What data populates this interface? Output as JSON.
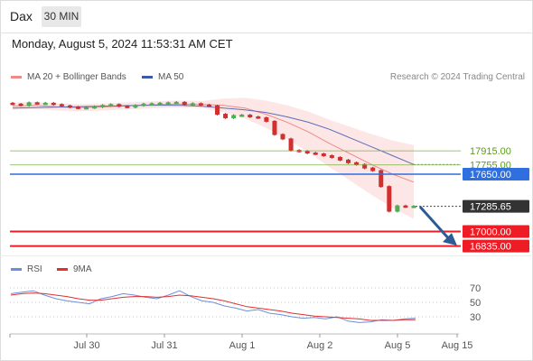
{
  "header": {
    "symbol": "Dax",
    "timeframe": "30 MIN",
    "datetime": "Monday, August 5, 2024 11:53:31 AM CET"
  },
  "legend": {
    "bb_label": "MA 20 + Bollinger Bands",
    "ma50_label": "MA 50",
    "credit": "Research © 2024 Trading Central",
    "rsi_label": "RSI",
    "rsi_ma_label": "9MA"
  },
  "colors": {
    "bullish": "#4caf50",
    "bearish": "#d32f2f",
    "ma20": "#f08a8a",
    "ma50": "#5b6cb8",
    "band_fill": "#fde2e2",
    "level_red": "#ee1c25",
    "level_blue": "#2f6fe0",
    "level_green": "#7cb342",
    "last_price_bg": "#333333",
    "arrow": "#2d5b96",
    "rsi": "#6c8fd9",
    "rsi_ma": "#e03030"
  },
  "chart_data": [
    {
      "type": "candlestick",
      "title": "Dax 30 MIN",
      "x_ticks": [
        "Jul 30",
        "Jul 31",
        "Aug 1",
        "Aug 2",
        "Aug 5",
        "Aug 15"
      ],
      "price_levels": [
        {
          "value": 17915.0,
          "label": "17915.00",
          "role": "resistance",
          "color": "green"
        },
        {
          "value": 17755.0,
          "label": "17755.00",
          "role": "resistance",
          "color": "green"
        },
        {
          "value": 17650.0,
          "label": "17650.00",
          "role": "pivot",
          "color": "blue"
        },
        {
          "value": 17285.65,
          "label": "17285.65",
          "role": "last",
          "color": "dark"
        },
        {
          "value": 17000.0,
          "label": "17000.00",
          "role": "support",
          "color": "red"
        },
        {
          "value": 16835.0,
          "label": "16835.00",
          "role": "support",
          "color": "red"
        }
      ],
      "series": [
        {
          "name": "MA 20 + Bollinger Bands",
          "values": [
            18420,
            18430,
            18415,
            18405,
            18410,
            18420,
            18430,
            18440,
            18445,
            18440,
            18430,
            18400,
            18330,
            18240,
            18130,
            18000,
            17880,
            17760,
            17650,
            17560
          ]
        },
        {
          "name": "MA 50",
          "values": [
            18400,
            18405,
            18410,
            18415,
            18420,
            18425,
            18430,
            18432,
            18430,
            18420,
            18400,
            18380,
            18350,
            18300,
            18240,
            18160,
            18060,
            17960,
            17860,
            17760
          ]
        }
      ],
      "closes": [
        18445,
        18430,
        18460,
        18450,
        18455,
        18440,
        18425,
        18410,
        18400,
        18405,
        18415,
        18430,
        18440,
        18420,
        18410,
        18430,
        18445,
        18450,
        18455,
        18460,
        18465,
        18440,
        18450,
        18435,
        18425,
        18330,
        18290,
        18315,
        18320,
        18300,
        18290,
        18250,
        18100,
        18050,
        17920,
        17910,
        17890,
        17880,
        17860,
        17840,
        17810,
        17780,
        17760,
        17720,
        17690,
        17510,
        17230,
        17290,
        17280,
        17286
      ]
    },
    {
      "type": "line",
      "title": "RSI",
      "y_ticks": [
        70,
        50,
        30
      ],
      "ylim": [
        10,
        90
      ],
      "series": [
        {
          "name": "RSI",
          "values": [
            62,
            64,
            66,
            60,
            55,
            52,
            50,
            48,
            55,
            58,
            62,
            60,
            57,
            55,
            60,
            66,
            58,
            52,
            50,
            45,
            42,
            38,
            40,
            35,
            33,
            30,
            28,
            29,
            27,
            30,
            24,
            22,
            23,
            26,
            25,
            27,
            28
          ]
        },
        {
          "name": "9MA",
          "values": [
            60,
            62,
            63,
            62,
            60,
            58,
            55,
            53,
            53,
            55,
            57,
            58,
            58,
            57,
            58,
            60,
            59,
            57,
            55,
            52,
            48,
            44,
            42,
            40,
            38,
            35,
            33,
            31,
            30,
            29,
            28,
            27,
            25,
            25,
            25,
            26,
            26
          ]
        }
      ]
    }
  ]
}
